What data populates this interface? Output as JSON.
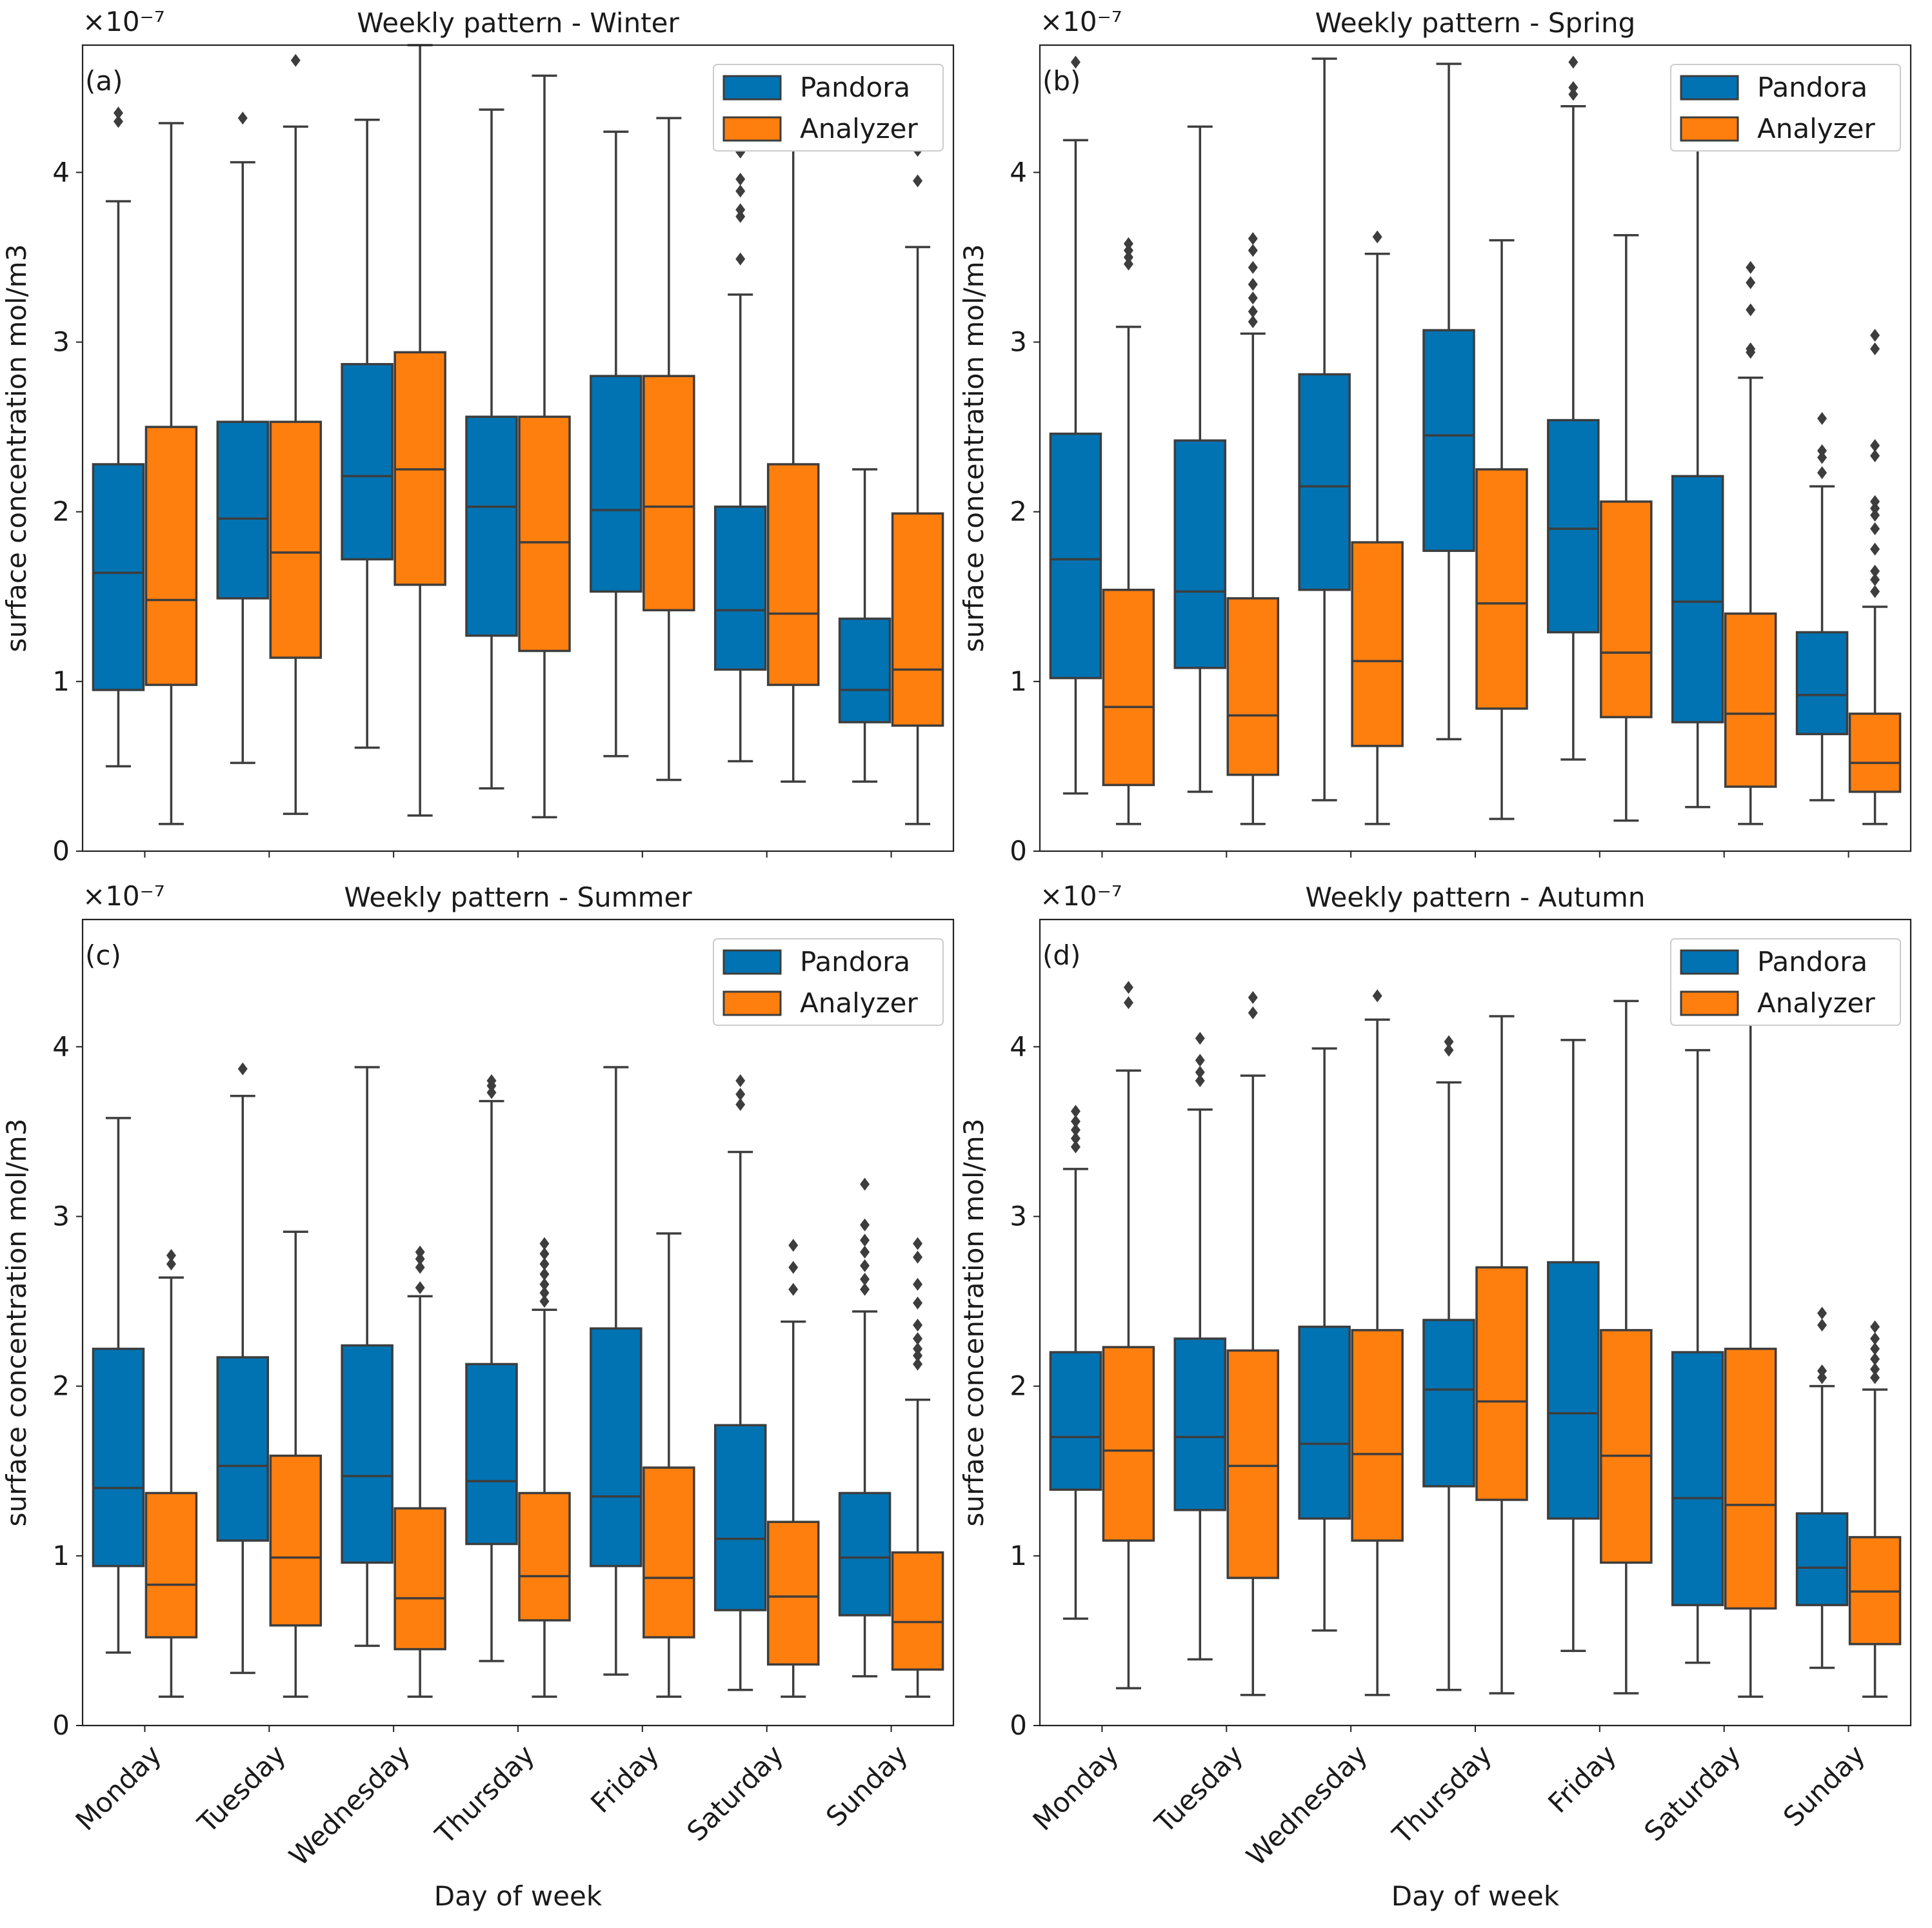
{
  "chart_data": {
    "type": "boxplot",
    "xlabel": "Day of week",
    "ylabel": "surface concentration mol/m3",
    "scale_label": "×10⁻⁷",
    "ylim": [
      0,
      4.75
    ],
    "yticks": [
      "0",
      "1",
      "2",
      "3",
      "4"
    ],
    "categories": [
      "Monday",
      "Tuesday",
      "Wednesday",
      "Thursday",
      "Friday",
      "Saturday",
      "Sunday"
    ],
    "legend": [
      "Pandora",
      "Analyzer"
    ],
    "colors": {
      "Pandora": "#0173b2",
      "Analyzer": "#ff7f0e"
    },
    "panels": [
      {
        "title": "Weekly pattern - Winter",
        "label": "(a)",
        "series": [
          {
            "name": "Pandora",
            "boxes": [
              {
                "whislo": 0.5,
                "q1": 0.95,
                "med": 1.64,
                "q3": 2.28,
                "whishi": 3.83,
                "fliers": [
                  4.3,
                  4.35
                ]
              },
              {
                "whislo": 0.52,
                "q1": 1.49,
                "med": 1.96,
                "q3": 2.53,
                "whishi": 4.06,
                "fliers": [
                  4.32
                ]
              },
              {
                "whislo": 0.61,
                "q1": 1.72,
                "med": 2.21,
                "q3": 2.87,
                "whishi": 4.31,
                "fliers": []
              },
              {
                "whislo": 0.37,
                "q1": 1.27,
                "med": 2.03,
                "q3": 2.56,
                "whishi": 4.37,
                "fliers": []
              },
              {
                "whislo": 0.56,
                "q1": 1.53,
                "med": 2.01,
                "q3": 2.8,
                "whishi": 4.24,
                "fliers": []
              },
              {
                "whislo": 0.53,
                "q1": 1.07,
                "med": 1.42,
                "q3": 2.03,
                "whishi": 3.28,
                "fliers": [
                  3.49,
                  3.74,
                  3.78,
                  3.89,
                  3.96,
                  4.12
                ]
              },
              {
                "whislo": 0.41,
                "q1": 0.76,
                "med": 0.95,
                "q3": 1.37,
                "whishi": 2.25,
                "fliers": []
              }
            ]
          },
          {
            "name": "Analyzer",
            "boxes": [
              {
                "whislo": 0.16,
                "q1": 0.98,
                "med": 1.48,
                "q3": 2.5,
                "whishi": 4.29,
                "fliers": []
              },
              {
                "whislo": 0.22,
                "q1": 1.14,
                "med": 1.76,
                "q3": 2.53,
                "whishi": 4.27,
                "fliers": [
                  4.66
                ]
              },
              {
                "whislo": 0.21,
                "q1": 1.57,
                "med": 2.25,
                "q3": 2.94,
                "whishi": 4.75,
                "fliers": []
              },
              {
                "whislo": 0.2,
                "q1": 1.18,
                "med": 1.82,
                "q3": 2.56,
                "whishi": 4.57,
                "fliers": []
              },
              {
                "whislo": 0.42,
                "q1": 1.42,
                "med": 2.03,
                "q3": 2.8,
                "whishi": 4.32,
                "fliers": []
              },
              {
                "whislo": 0.41,
                "q1": 0.98,
                "med": 1.4,
                "q3": 2.28,
                "whishi": 4.19,
                "fliers": [
                  4.3
                ]
              },
              {
                "whislo": 0.16,
                "q1": 0.74,
                "med": 1.07,
                "q3": 1.99,
                "whishi": 3.56,
                "fliers": [
                  3.95,
                  4.13
                ]
              }
            ]
          }
        ]
      },
      {
        "title": "Weekly pattern - Spring",
        "label": "(b)",
        "series": [
          {
            "name": "Pandora",
            "boxes": [
              {
                "whislo": 0.34,
                "q1": 1.02,
                "med": 1.72,
                "q3": 2.46,
                "whishi": 4.19,
                "fliers": [
                  4.65
                ]
              },
              {
                "whislo": 0.35,
                "q1": 1.08,
                "med": 1.53,
                "q3": 2.42,
                "whishi": 4.27,
                "fliers": []
              },
              {
                "whislo": 0.3,
                "q1": 1.54,
                "med": 2.15,
                "q3": 2.81,
                "whishi": 4.67,
                "fliers": []
              },
              {
                "whislo": 0.66,
                "q1": 1.77,
                "med": 2.45,
                "q3": 3.07,
                "whishi": 4.64,
                "fliers": []
              },
              {
                "whislo": 0.54,
                "q1": 1.29,
                "med": 1.9,
                "q3": 2.54,
                "whishi": 4.39,
                "fliers": [
                  4.46,
                  4.5,
                  4.65
                ]
              },
              {
                "whislo": 0.26,
                "q1": 0.76,
                "med": 1.47,
                "q3": 2.21,
                "whishi": 4.31,
                "fliers": []
              },
              {
                "whislo": 0.3,
                "q1": 0.69,
                "med": 0.92,
                "q3": 1.29,
                "whishi": 2.15,
                "fliers": [
                  2.23,
                  2.32,
                  2.36,
                  2.55
                ]
              }
            ]
          },
          {
            "name": "Analyzer",
            "boxes": [
              {
                "whislo": 0.16,
                "q1": 0.39,
                "med": 0.85,
                "q3": 1.54,
                "whishi": 3.09,
                "fliers": [
                  3.46,
                  3.5,
                  3.54,
                  3.58
                ]
              },
              {
                "whislo": 0.16,
                "q1": 0.45,
                "med": 0.8,
                "q3": 1.49,
                "whishi": 3.05,
                "fliers": [
                  3.12,
                  3.18,
                  3.26,
                  3.34,
                  3.44,
                  3.54,
                  3.61
                ]
              },
              {
                "whislo": 0.16,
                "q1": 0.62,
                "med": 1.12,
                "q3": 1.82,
                "whishi": 3.52,
                "fliers": [
                  3.62
                ]
              },
              {
                "whislo": 0.19,
                "q1": 0.84,
                "med": 1.46,
                "q3": 2.25,
                "whishi": 3.6,
                "fliers": []
              },
              {
                "whislo": 0.18,
                "q1": 0.79,
                "med": 1.17,
                "q3": 2.06,
                "whishi": 3.63,
                "fliers": []
              },
              {
                "whislo": 0.16,
                "q1": 0.38,
                "med": 0.81,
                "q3": 1.4,
                "whishi": 2.79,
                "fliers": [
                  2.94,
                  2.96,
                  3.19,
                  3.35,
                  3.44
                ]
              },
              {
                "whislo": 0.16,
                "q1": 0.35,
                "med": 0.52,
                "q3": 0.81,
                "whishi": 1.44,
                "fliers": [
                  1.53,
                  1.6,
                  1.65,
                  1.78,
                  1.9,
                  1.98,
                  2.02,
                  2.06,
                  2.33,
                  2.39,
                  2.96,
                  3.04
                ]
              }
            ]
          }
        ]
      },
      {
        "title": "Weekly pattern - Summer",
        "label": "(c)",
        "series": [
          {
            "name": "Pandora",
            "boxes": [
              {
                "whislo": 0.43,
                "q1": 0.94,
                "med": 1.4,
                "q3": 2.22,
                "whishi": 3.58,
                "fliers": []
              },
              {
                "whislo": 0.31,
                "q1": 1.09,
                "med": 1.53,
                "q3": 2.17,
                "whishi": 3.71,
                "fliers": [
                  3.87
                ]
              },
              {
                "whislo": 0.47,
                "q1": 0.96,
                "med": 1.47,
                "q3": 2.24,
                "whishi": 3.88,
                "fliers": []
              },
              {
                "whislo": 0.38,
                "q1": 1.07,
                "med": 1.44,
                "q3": 2.13,
                "whishi": 3.68,
                "fliers": [
                  3.73,
                  3.77,
                  3.8
                ]
              },
              {
                "whislo": 0.3,
                "q1": 0.94,
                "med": 1.35,
                "q3": 2.34,
                "whishi": 3.88,
                "fliers": []
              },
              {
                "whislo": 0.21,
                "q1": 0.68,
                "med": 1.1,
                "q3": 1.77,
                "whishi": 3.38,
                "fliers": [
                  3.66,
                  3.72,
                  3.8
                ]
              },
              {
                "whislo": 0.29,
                "q1": 0.65,
                "med": 0.99,
                "q3": 1.37,
                "whishi": 2.44,
                "fliers": [
                  2.57,
                  2.63,
                  2.71,
                  2.79,
                  2.86,
                  2.95,
                  3.19
                ]
              }
            ]
          },
          {
            "name": "Analyzer",
            "boxes": [
              {
                "whislo": 0.17,
                "q1": 0.52,
                "med": 0.83,
                "q3": 1.37,
                "whishi": 2.64,
                "fliers": [
                  2.72,
                  2.77
                ]
              },
              {
                "whislo": 0.17,
                "q1": 0.59,
                "med": 0.99,
                "q3": 1.59,
                "whishi": 2.91,
                "fliers": []
              },
              {
                "whislo": 0.17,
                "q1": 0.45,
                "med": 0.75,
                "q3": 1.28,
                "whishi": 2.53,
                "fliers": [
                  2.58,
                  2.7,
                  2.75,
                  2.79
                ]
              },
              {
                "whislo": 0.17,
                "q1": 0.62,
                "med": 0.88,
                "q3": 1.37,
                "whishi": 2.45,
                "fliers": [
                  2.5,
                  2.55,
                  2.6,
                  2.66,
                  2.72,
                  2.78,
                  2.84
                ]
              },
              {
                "whislo": 0.17,
                "q1": 0.52,
                "med": 0.87,
                "q3": 1.52,
                "whishi": 2.9,
                "fliers": []
              },
              {
                "whislo": 0.17,
                "q1": 0.36,
                "med": 0.76,
                "q3": 1.2,
                "whishi": 2.38,
                "fliers": [
                  2.57,
                  2.7,
                  2.83
                ]
              },
              {
                "whislo": 0.17,
                "q1": 0.33,
                "med": 0.61,
                "q3": 1.02,
                "whishi": 1.92,
                "fliers": [
                  2.13,
                  2.18,
                  2.22,
                  2.28,
                  2.36,
                  2.49,
                  2.6,
                  2.76,
                  2.84
                ]
              }
            ]
          }
        ]
      },
      {
        "title": "Weekly pattern - Autumn",
        "label": "(d)",
        "series": [
          {
            "name": "Pandora",
            "boxes": [
              {
                "whislo": 0.63,
                "q1": 1.39,
                "med": 1.7,
                "q3": 2.2,
                "whishi": 3.28,
                "fliers": [
                  3.41,
                  3.46,
                  3.51,
                  3.56,
                  3.62
                ]
              },
              {
                "whislo": 0.39,
                "q1": 1.27,
                "med": 1.7,
                "q3": 2.28,
                "whishi": 3.63,
                "fliers": [
                  3.8,
                  3.85,
                  3.92,
                  4.05
                ]
              },
              {
                "whislo": 0.56,
                "q1": 1.22,
                "med": 1.66,
                "q3": 2.35,
                "whishi": 3.99,
                "fliers": []
              },
              {
                "whislo": 0.21,
                "q1": 1.41,
                "med": 1.98,
                "q3": 2.39,
                "whishi": 3.79,
                "fliers": [
                  3.98,
                  4.03
                ]
              },
              {
                "whislo": 0.44,
                "q1": 1.22,
                "med": 1.84,
                "q3": 2.73,
                "whishi": 4.04,
                "fliers": []
              },
              {
                "whislo": 0.37,
                "q1": 0.71,
                "med": 1.34,
                "q3": 2.2,
                "whishi": 3.98,
                "fliers": []
              },
              {
                "whislo": 0.34,
                "q1": 0.71,
                "med": 0.93,
                "q3": 1.25,
                "whishi": 2.0,
                "fliers": [
                  2.05,
                  2.09,
                  2.36,
                  2.43
                ]
              }
            ]
          },
          {
            "name": "Analyzer",
            "boxes": [
              {
                "whislo": 0.22,
                "q1": 1.09,
                "med": 1.62,
                "q3": 2.23,
                "whishi": 3.86,
                "fliers": [
                  4.26,
                  4.35
                ]
              },
              {
                "whislo": 0.18,
                "q1": 0.87,
                "med": 1.53,
                "q3": 2.21,
                "whishi": 3.83,
                "fliers": [
                  4.2,
                  4.29
                ]
              },
              {
                "whislo": 0.18,
                "q1": 1.09,
                "med": 1.6,
                "q3": 2.33,
                "whishi": 4.16,
                "fliers": [
                  4.3
                ]
              },
              {
                "whislo": 0.19,
                "q1": 1.33,
                "med": 1.91,
                "q3": 2.7,
                "whishi": 4.18,
                "fliers": []
              },
              {
                "whislo": 0.19,
                "q1": 0.96,
                "med": 1.59,
                "q3": 2.33,
                "whishi": 4.27,
                "fliers": []
              },
              {
                "whislo": 0.17,
                "q1": 0.69,
                "med": 1.3,
                "q3": 2.22,
                "whishi": 4.31,
                "fliers": []
              },
              {
                "whislo": 0.17,
                "q1": 0.48,
                "med": 0.79,
                "q3": 1.11,
                "whishi": 1.98,
                "fliers": [
                  2.05,
                  2.1,
                  2.16,
                  2.22,
                  2.28,
                  2.35
                ]
              }
            ]
          }
        ]
      }
    ]
  }
}
